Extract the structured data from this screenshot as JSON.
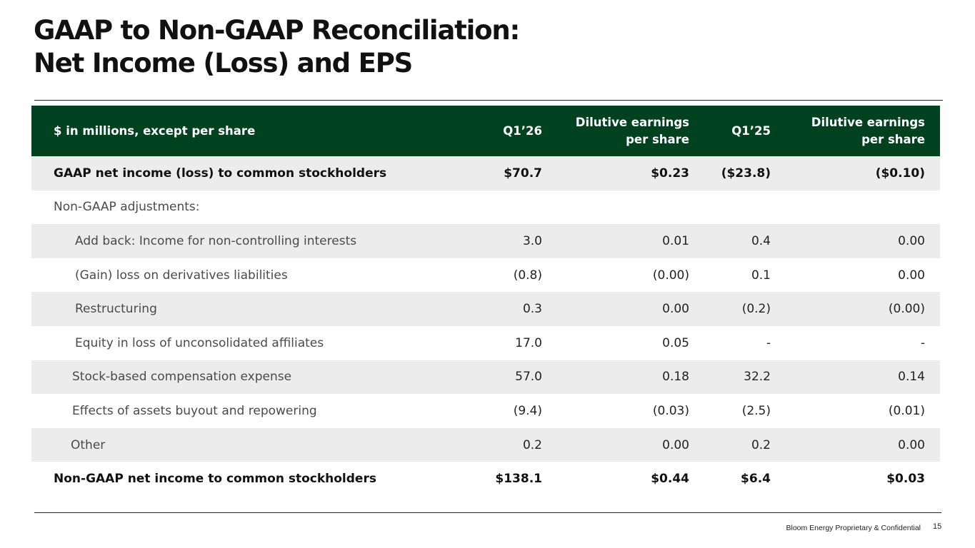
{
  "title": {
    "line1": "GAAP to Non-GAAP Reconciliation:",
    "line2": "Net Income (Loss) and EPS"
  },
  "table": {
    "headers": {
      "label": "$ in millions, except per share",
      "q126": "Q1’26",
      "eps1_line1": "Dilutive earnings",
      "eps1_line2": "per share",
      "q125": "Q1’25",
      "eps2_line1": "Dilutive earnings",
      "eps2_line2": "per share"
    },
    "rows": [
      {
        "label": "GAAP net income (loss) to common stockholders",
        "q126": "$70.7",
        "eps126": "$0.23",
        "q125": "($23.8)",
        "eps125": "($0.10)"
      },
      {
        "label": "Non-GAAP adjustments:",
        "q126": "",
        "eps126": "",
        "q125": "",
        "eps125": ""
      },
      {
        "label": "Add back: Income for non-controlling interests",
        "q126": "3.0",
        "eps126": "0.01",
        "q125": "0.4",
        "eps125": "0.00"
      },
      {
        "label": "(Gain) loss on derivatives liabilities",
        "q126": "(0.8)",
        "eps126": "(0.00)",
        "q125": "0.1",
        "eps125": "0.00"
      },
      {
        "label": "Restructuring",
        "q126": "0.3",
        "eps126": "0.00",
        "q125": "(0.2)",
        "eps125": "(0.00)"
      },
      {
        "label": "Equity in loss of unconsolidated affiliates",
        "q126": "17.0",
        "eps126": "0.05",
        "q125": "-",
        "eps125": "-"
      },
      {
        "label": "Stock-based compensation expense",
        "q126": "57.0",
        "eps126": "0.18",
        "q125": "32.2",
        "eps125": "0.14"
      },
      {
        "label": "Effects of assets buyout and repowering",
        "q126": "(9.4)",
        "eps126": "(0.03)",
        "q125": "(2.5)",
        "eps125": "(0.01)"
      },
      {
        "label": "Other",
        "q126": "0.2",
        "eps126": "0.00",
        "q125": "0.2",
        "eps125": "0.00"
      },
      {
        "label": "Non-GAAP net income to common stockholders",
        "q126": "$138.1",
        "eps126": "$0.44",
        "q125": "$6.4",
        "eps125": "$0.03"
      }
    ]
  },
  "footer": {
    "confidential": "Bloom Energy Proprietary & Confidential",
    "page_number": "15"
  },
  "colors": {
    "header_bg": "#004220",
    "row_shade": "#ececec"
  }
}
